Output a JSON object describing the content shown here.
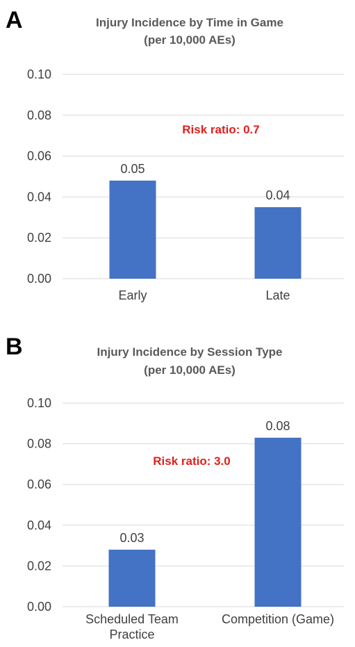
{
  "chart_data": [
    {
      "type": "bar",
      "panel": "A",
      "title": "Injury Incidence by Time in Game",
      "subtitle": "(per 10,000 AEs)",
      "categories": [
        "Early",
        "Late"
      ],
      "category_lines": [
        [
          "Early"
        ],
        [
          "Late"
        ]
      ],
      "values": [
        0.048,
        0.035
      ],
      "data_labels": [
        "0.05",
        "0.04"
      ],
      "ylim": [
        0,
        0.1
      ],
      "yticks": [
        "0.00",
        "0.02",
        "0.04",
        "0.06",
        "0.08",
        "0.10"
      ],
      "annotation": "Risk ratio: 0.7",
      "grid": true,
      "bar_color": "#4472c4",
      "annotation_color": "#e0201b"
    },
    {
      "type": "bar",
      "panel": "B",
      "title": "Injury Incidence by Session Type",
      "subtitle": "(per 10,000 AEs)",
      "categories": [
        "Scheduled Team Practice",
        "Competition (Game)"
      ],
      "category_lines": [
        [
          "Scheduled Team",
          "Practice"
        ],
        [
          "Competition (Game)"
        ]
      ],
      "values": [
        0.028,
        0.083
      ],
      "data_labels": [
        "0.03",
        "0.08"
      ],
      "ylim": [
        0,
        0.1
      ],
      "yticks": [
        "0.00",
        "0.02",
        "0.04",
        "0.06",
        "0.08",
        "0.10"
      ],
      "annotation": "Risk ratio: 3.0",
      "grid": true,
      "bar_color": "#4472c4",
      "annotation_color": "#e0201b"
    }
  ]
}
